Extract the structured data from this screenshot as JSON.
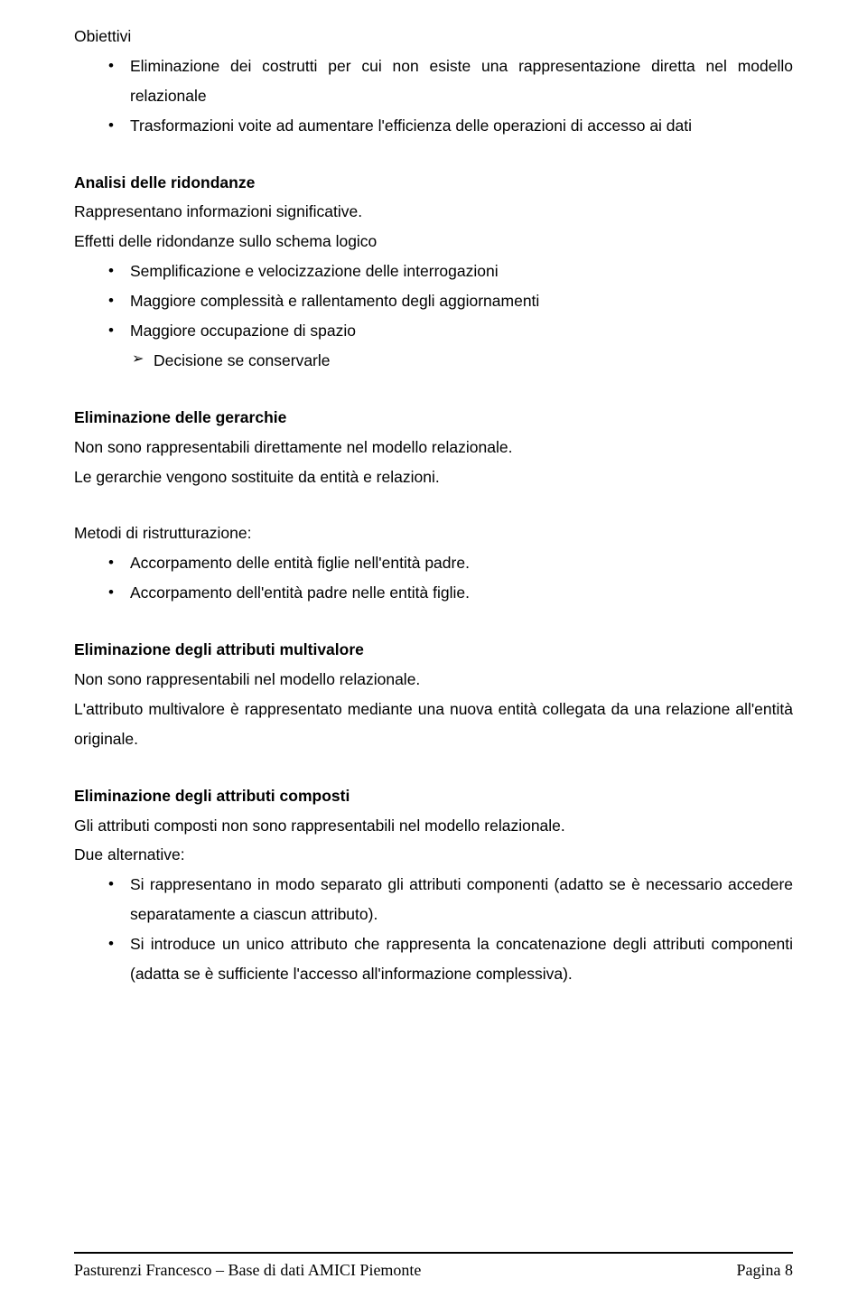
{
  "colors": {
    "text": "#000000",
    "background": "#ffffff",
    "rule": "#000000"
  },
  "typography": {
    "body_font": "Arial, Helvetica, sans-serif",
    "body_size_pt": 13,
    "line_height": 1.88,
    "footer_font": "Times New Roman, serif",
    "footer_size_pt": 13.5
  },
  "s1": {
    "title": "Obiettivi",
    "items": [
      "Eliminazione dei costrutti per cui non esiste una rappresentazione diretta nel modello relazionale",
      "Trasformazioni voite ad aumentare l'efficienza delle operazioni di accesso ai dati"
    ]
  },
  "s2": {
    "title": "Analisi delle ridondanze",
    "p1": "Rappresentano informazioni significative.",
    "p2": "Effetti delle ridondanze sullo schema logico",
    "items": [
      "Semplificazione e velocizzazione delle interrogazioni",
      "Maggiore complessità e rallentamento degli aggiornamenti",
      "Maggiore occupazione di spazio"
    ],
    "sub": [
      "Decisione se conservarle"
    ]
  },
  "s3": {
    "title": "Eliminazione delle gerarchie",
    "p1": "Non sono rappresentabili direttamente nel modello relazionale.",
    "p2": "Le gerarchie vengono sostituite da entità e relazioni.",
    "p3": "Metodi di ristrutturazione:",
    "items": [
      "Accorpamento delle entità figlie nell'entità padre.",
      "Accorpamento dell'entità padre nelle entità figlie."
    ]
  },
  "s4": {
    "title": "Eliminazione degli attributi multivalore",
    "p1": "Non sono rappresentabili nel modello relazionale.",
    "p2": "L'attributo multivalore è rappresentato mediante una nuova entità collegata da una relazione all'entità originale."
  },
  "s5": {
    "title": "Eliminazione degli attributi composti",
    "p1": "Gli attributi composti non sono rappresentabili nel modello relazionale.",
    "p2": "Due alternative:",
    "items": [
      "Si rappresentano in modo separato gli attributi componenti (adatto se è necessario accedere separatamente a ciascun attributo).",
      "Si introduce un unico attributo che rappresenta la concatenazione degli attributi componenti (adatta se è sufficiente l'accesso all'informazione complessiva)."
    ]
  },
  "footer": {
    "left": "Pasturenzi Francesco – Base di dati AMICI Piemonte",
    "right": "Pagina 8"
  }
}
